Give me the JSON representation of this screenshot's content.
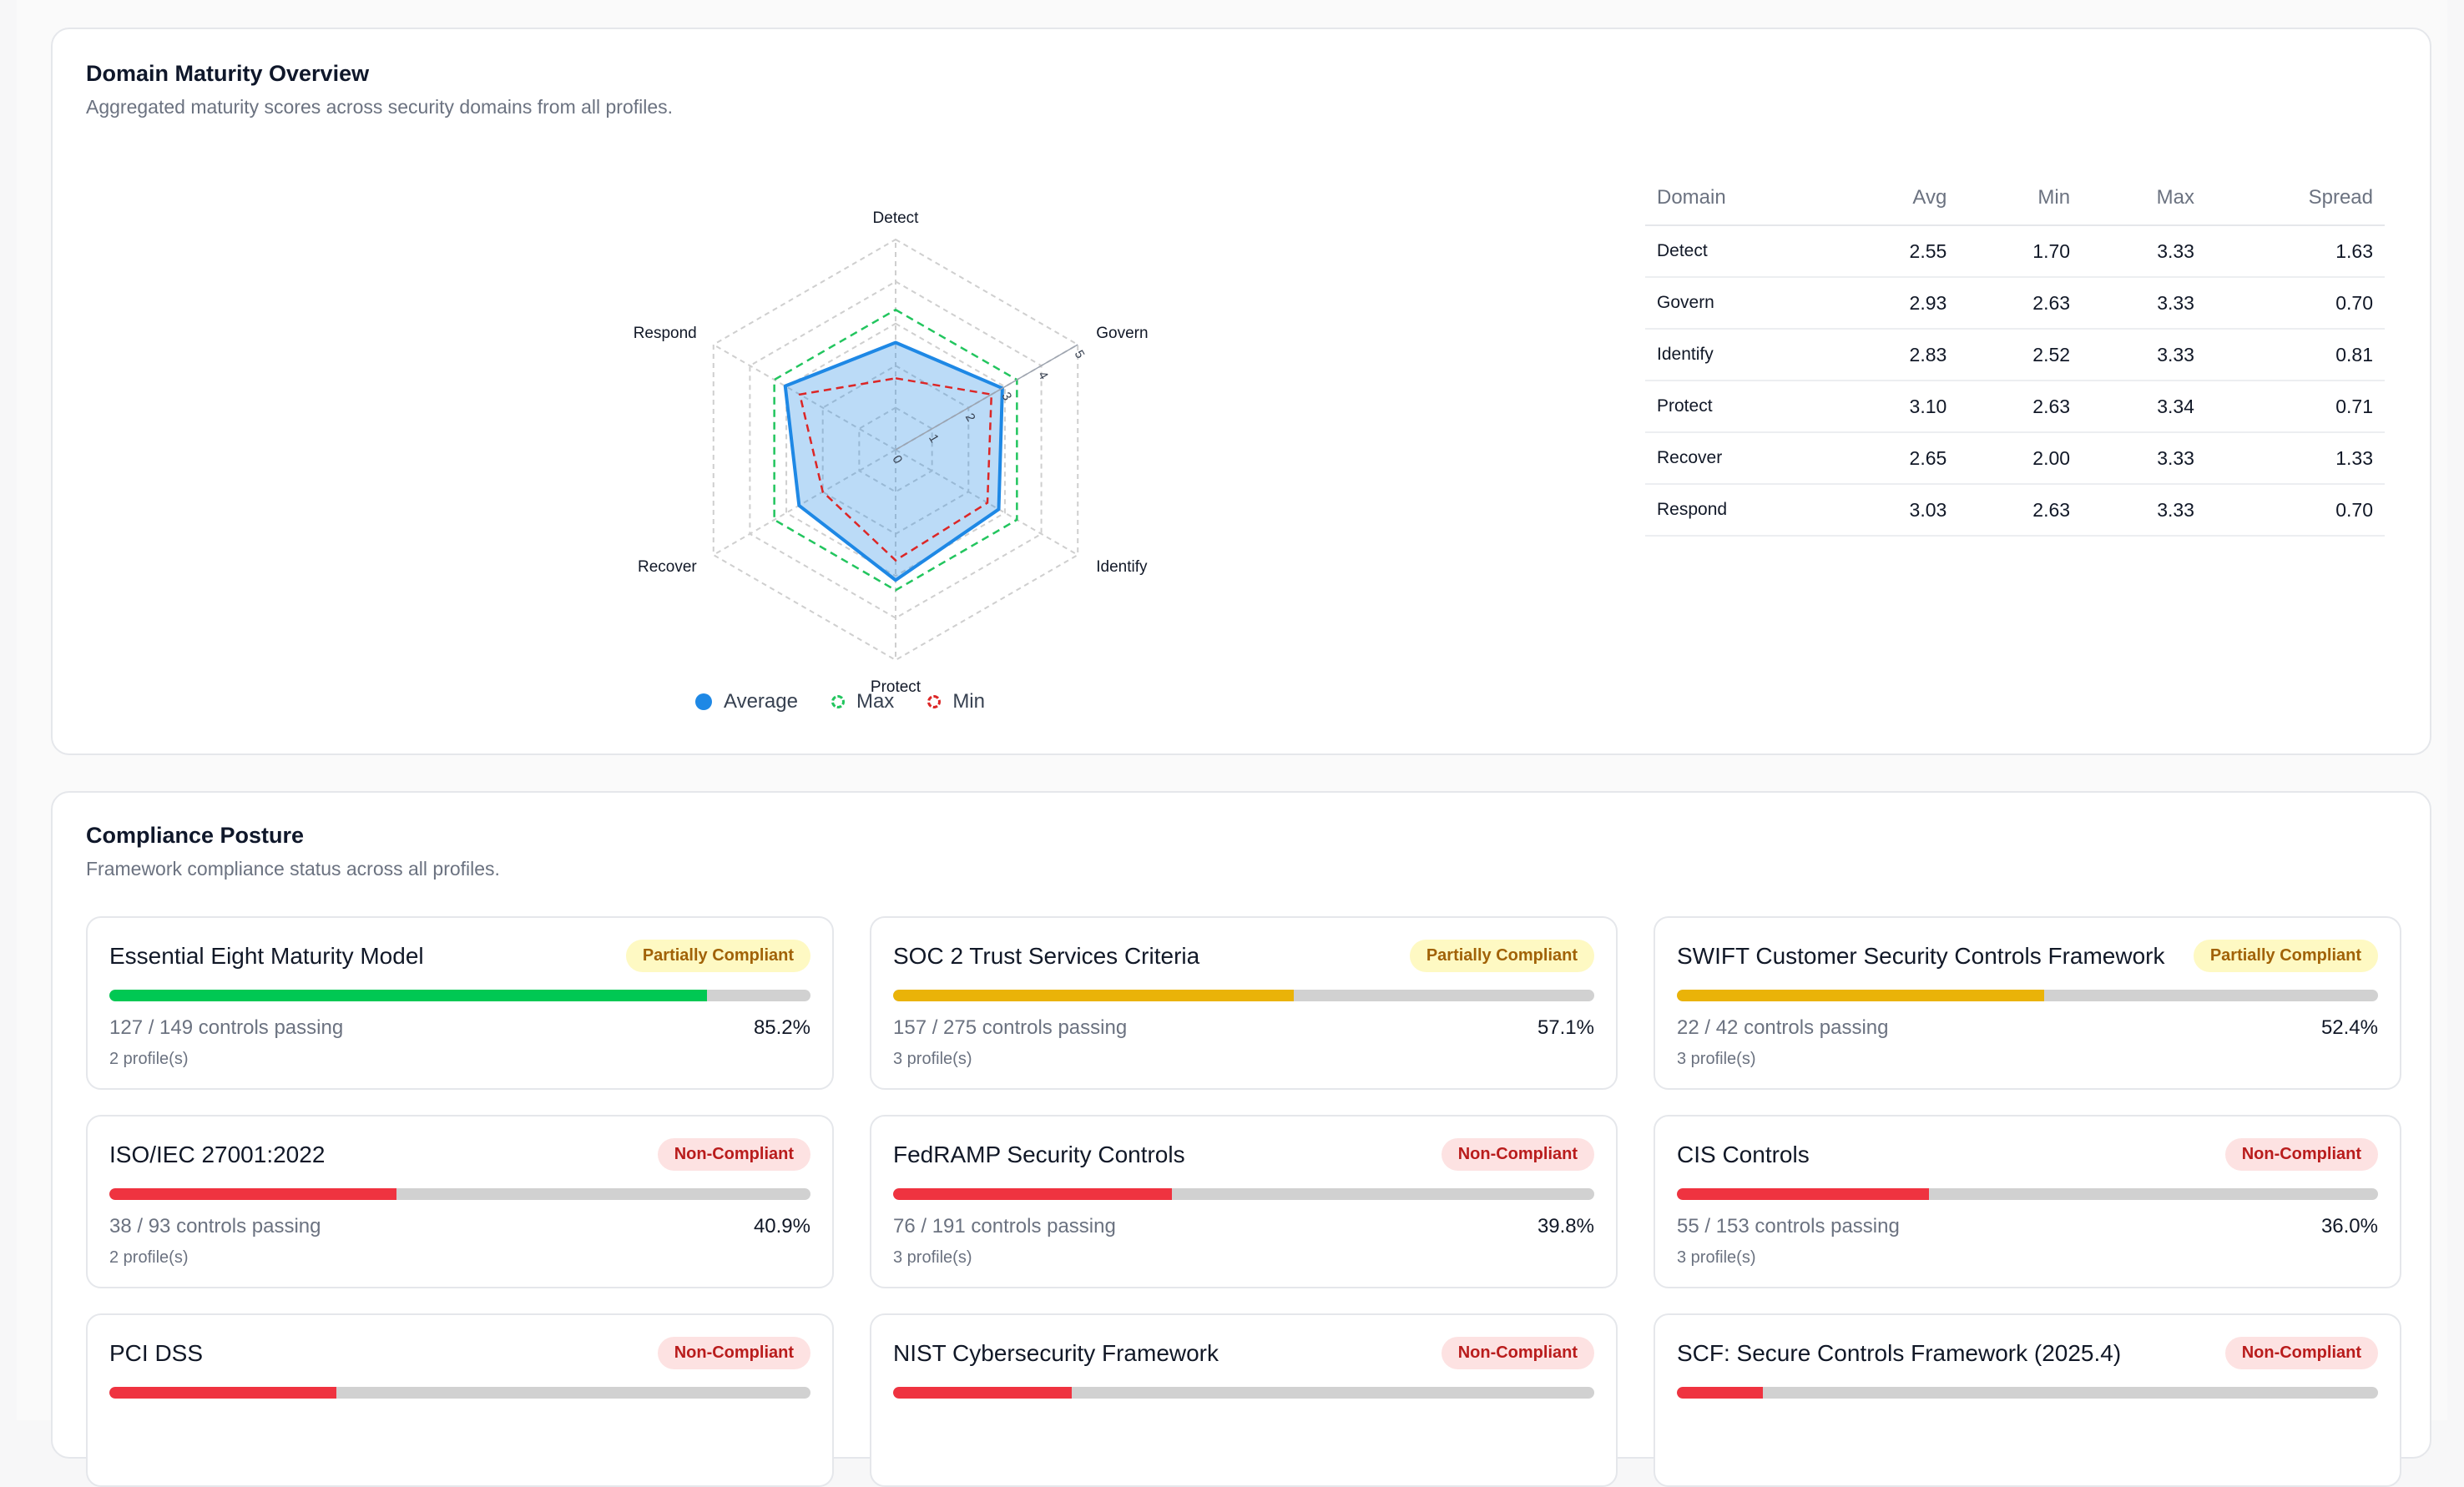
{
  "maturity": {
    "title": "Domain Maturity Overview",
    "subtitle": "Aggregated maturity scores across security domains from all profiles.",
    "chart_data": {
      "type": "radar",
      "axes": [
        "Detect",
        "Govern",
        "Identify",
        "Protect",
        "Recover",
        "Respond"
      ],
      "radial_ticks": [
        "0",
        "1",
        "2",
        "3",
        "4",
        "5"
      ],
      "rlim": [
        0,
        5
      ],
      "series": [
        {
          "name": "Average",
          "values": [
            2.55,
            2.93,
            2.83,
            3.1,
            2.65,
            3.03
          ],
          "color": "#1e88e5",
          "style": "solid-filled"
        },
        {
          "name": "Max",
          "values": [
            3.33,
            3.33,
            3.33,
            3.34,
            3.33,
            3.33
          ],
          "color": "#22c55e",
          "style": "dashed"
        },
        {
          "name": "Min",
          "values": [
            1.7,
            2.63,
            2.52,
            2.63,
            2.0,
            2.63
          ],
          "color": "#dc2626",
          "style": "dashed"
        }
      ],
      "legend": "bottom",
      "grid": true
    },
    "legend": {
      "average": "Average",
      "max": "Max",
      "min": "Min"
    },
    "table": {
      "headers": {
        "domain": "Domain",
        "avg": "Avg",
        "min": "Min",
        "max": "Max",
        "spread": "Spread"
      },
      "rows": [
        {
          "domain": "Detect",
          "avg": "2.55",
          "min": "1.70",
          "max": "3.33",
          "spread": "1.63"
        },
        {
          "domain": "Govern",
          "avg": "2.93",
          "min": "2.63",
          "max": "3.33",
          "spread": "0.70"
        },
        {
          "domain": "Identify",
          "avg": "2.83",
          "min": "2.52",
          "max": "3.33",
          "spread": "0.81"
        },
        {
          "domain": "Protect",
          "avg": "3.10",
          "min": "2.63",
          "max": "3.34",
          "spread": "0.71"
        },
        {
          "domain": "Recover",
          "avg": "2.65",
          "min": "2.00",
          "max": "3.33",
          "spread": "1.33"
        },
        {
          "domain": "Respond",
          "avg": "3.03",
          "min": "2.63",
          "max": "3.33",
          "spread": "0.70"
        }
      ]
    }
  },
  "compliance": {
    "title": "Compliance Posture",
    "subtitle": "Framework compliance status across all profiles.",
    "status_colors": {
      "partial": "#eab308",
      "non_compliant": "#ef3340",
      "good": "#00c853"
    },
    "frameworks": [
      {
        "name": "Essential Eight Maturity Model",
        "badge": "Partially Compliant",
        "status": "partial",
        "controls": "127 / 149 controls passing",
        "percent": "85.2%",
        "fill": 85.2,
        "bar_color": "#00c853",
        "profiles": "2 profile(s)"
      },
      {
        "name": "SOC 2 Trust Services Criteria",
        "badge": "Partially Compliant",
        "status": "partial",
        "controls": "157 / 275 controls passing",
        "percent": "57.1%",
        "fill": 57.1,
        "bar_color": "#eab308",
        "profiles": "3 profile(s)"
      },
      {
        "name": "SWIFT Customer Security Controls Framework",
        "badge": "Partially Compliant",
        "status": "partial",
        "controls": "22 / 42 controls passing",
        "percent": "52.4%",
        "fill": 52.4,
        "bar_color": "#eab308",
        "profiles": "3 profile(s)"
      },
      {
        "name": "ISO/IEC 27001:2022",
        "badge": "Non-Compliant",
        "status": "non",
        "controls": "38 / 93 controls passing",
        "percent": "40.9%",
        "fill": 40.9,
        "bar_color": "#ef3340",
        "profiles": "2 profile(s)"
      },
      {
        "name": "FedRAMP Security Controls",
        "badge": "Non-Compliant",
        "status": "non",
        "controls": "76 / 191 controls passing",
        "percent": "39.8%",
        "fill": 39.8,
        "bar_color": "#ef3340",
        "profiles": "3 profile(s)"
      },
      {
        "name": "CIS Controls",
        "badge": "Non-Compliant",
        "status": "non",
        "controls": "55 / 153 controls passing",
        "percent": "36.0%",
        "fill": 36.0,
        "bar_color": "#ef3340",
        "profiles": "3 profile(s)"
      },
      {
        "name": "PCI DSS",
        "badge": "Non-Compliant",
        "status": "non",
        "controls": "",
        "percent": "",
        "fill": 32.4,
        "bar_color": "#ef3340",
        "profiles": ""
      },
      {
        "name": "NIST Cybersecurity Framework",
        "badge": "Non-Compliant",
        "status": "non",
        "controls": "",
        "percent": "",
        "fill": 25.5,
        "bar_color": "#ef3340",
        "profiles": ""
      },
      {
        "name": "SCF: Secure Controls Framework (2025.4)",
        "badge": "Non-Compliant",
        "status": "non",
        "controls": "",
        "percent": "",
        "fill": 12.3,
        "bar_color": "#ef3340",
        "profiles": ""
      }
    ]
  }
}
